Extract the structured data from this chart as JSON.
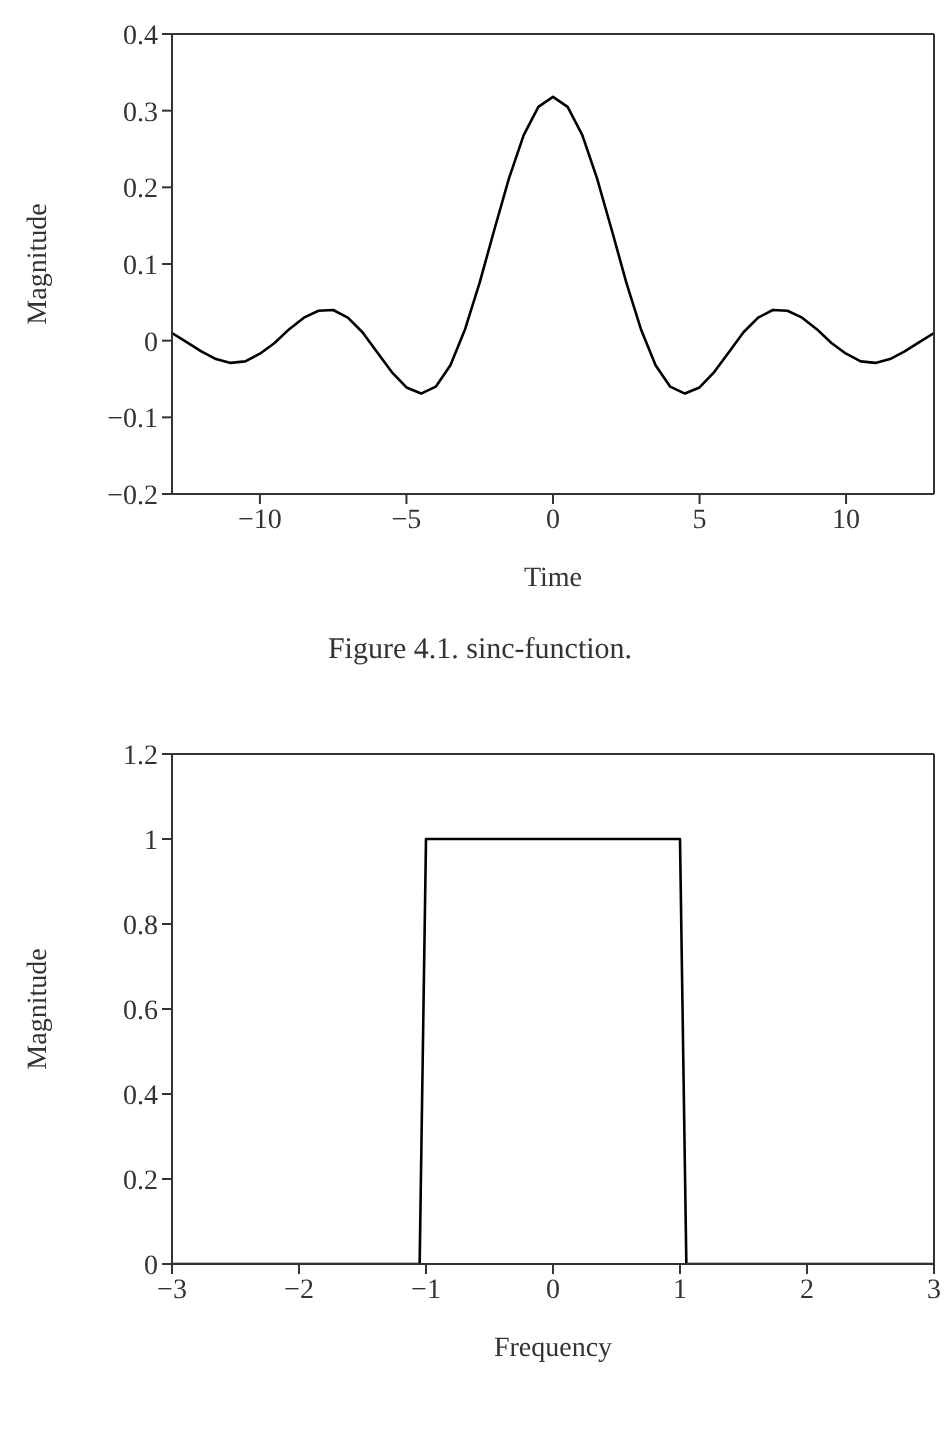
{
  "chart_data": [
    {
      "type": "line",
      "xlabel": "Time",
      "ylabel": "Magnitude",
      "annotations": [
        "Figure 4.1.  sinc-function."
      ],
      "xlim": [
        -13,
        13
      ],
      "xticks": [
        -10,
        -5,
        0,
        5,
        10
      ],
      "ylim": [
        -0.2,
        0.4
      ],
      "yticks": [
        -0.2,
        -0.1,
        0,
        0.1,
        0.2,
        0.3,
        0.4
      ],
      "grid": false,
      "legend": false,
      "marker": "none",
      "line_style": "solid",
      "x": [
        -13,
        -12.5,
        -12,
        -11.5,
        -11,
        -10.5,
        -10,
        -9.5,
        -9,
        -8.5,
        -8,
        -7.5,
        -7,
        -6.5,
        -6,
        -5.5,
        -5,
        -4.5,
        -4,
        -3.5,
        -3,
        -2.5,
        -2,
        -1.5,
        -1,
        -0.5,
        0,
        0.5,
        1,
        1.5,
        2,
        2.5,
        3,
        3.5,
        4,
        4.5,
        5,
        5.5,
        6,
        6.5,
        7,
        7.5,
        8,
        8.5,
        9,
        9.5,
        10,
        10.5,
        11,
        11.5,
        12,
        12.5,
        13
      ],
      "series": [
        {
          "color": "#000000",
          "values": [
            0.01,
            -0.002,
            -0.014,
            -0.024,
            -0.029,
            -0.027,
            -0.017,
            -0.003,
            0.015,
            0.03,
            0.039,
            0.04,
            0.03,
            0.011,
            -0.015,
            -0.041,
            -0.061,
            -0.069,
            -0.06,
            -0.032,
            0.015,
            0.076,
            0.145,
            0.212,
            0.268,
            0.305,
            0.318,
            0.305,
            0.268,
            0.212,
            0.145,
            0.076,
            0.015,
            -0.032,
            -0.06,
            -0.069,
            -0.061,
            -0.041,
            -0.015,
            0.011,
            0.03,
            0.04,
            0.039,
            0.03,
            0.015,
            -0.003,
            -0.017,
            -0.027,
            -0.029,
            -0.024,
            -0.014,
            -0.002,
            0.01
          ]
        }
      ]
    },
    {
      "type": "line",
      "xlabel": "Frequency",
      "ylabel": "Magnitude",
      "xlim": [
        -3,
        3
      ],
      "xticks": [
        -3,
        -2,
        -1,
        0,
        1,
        2,
        3
      ],
      "ylim": [
        0,
        1.2
      ],
      "yticks": [
        0,
        0.2,
        0.4,
        0.6,
        0.8,
        1,
        1.2
      ],
      "grid": false,
      "legend": false,
      "marker": "none",
      "line_style": "solid",
      "x": [
        -3,
        -1.05,
        -1,
        1,
        1.05,
        3
      ],
      "series": [
        {
          "color": "#000000",
          "values": [
            0,
            0,
            1,
            1,
            0,
            0
          ]
        }
      ]
    }
  ]
}
